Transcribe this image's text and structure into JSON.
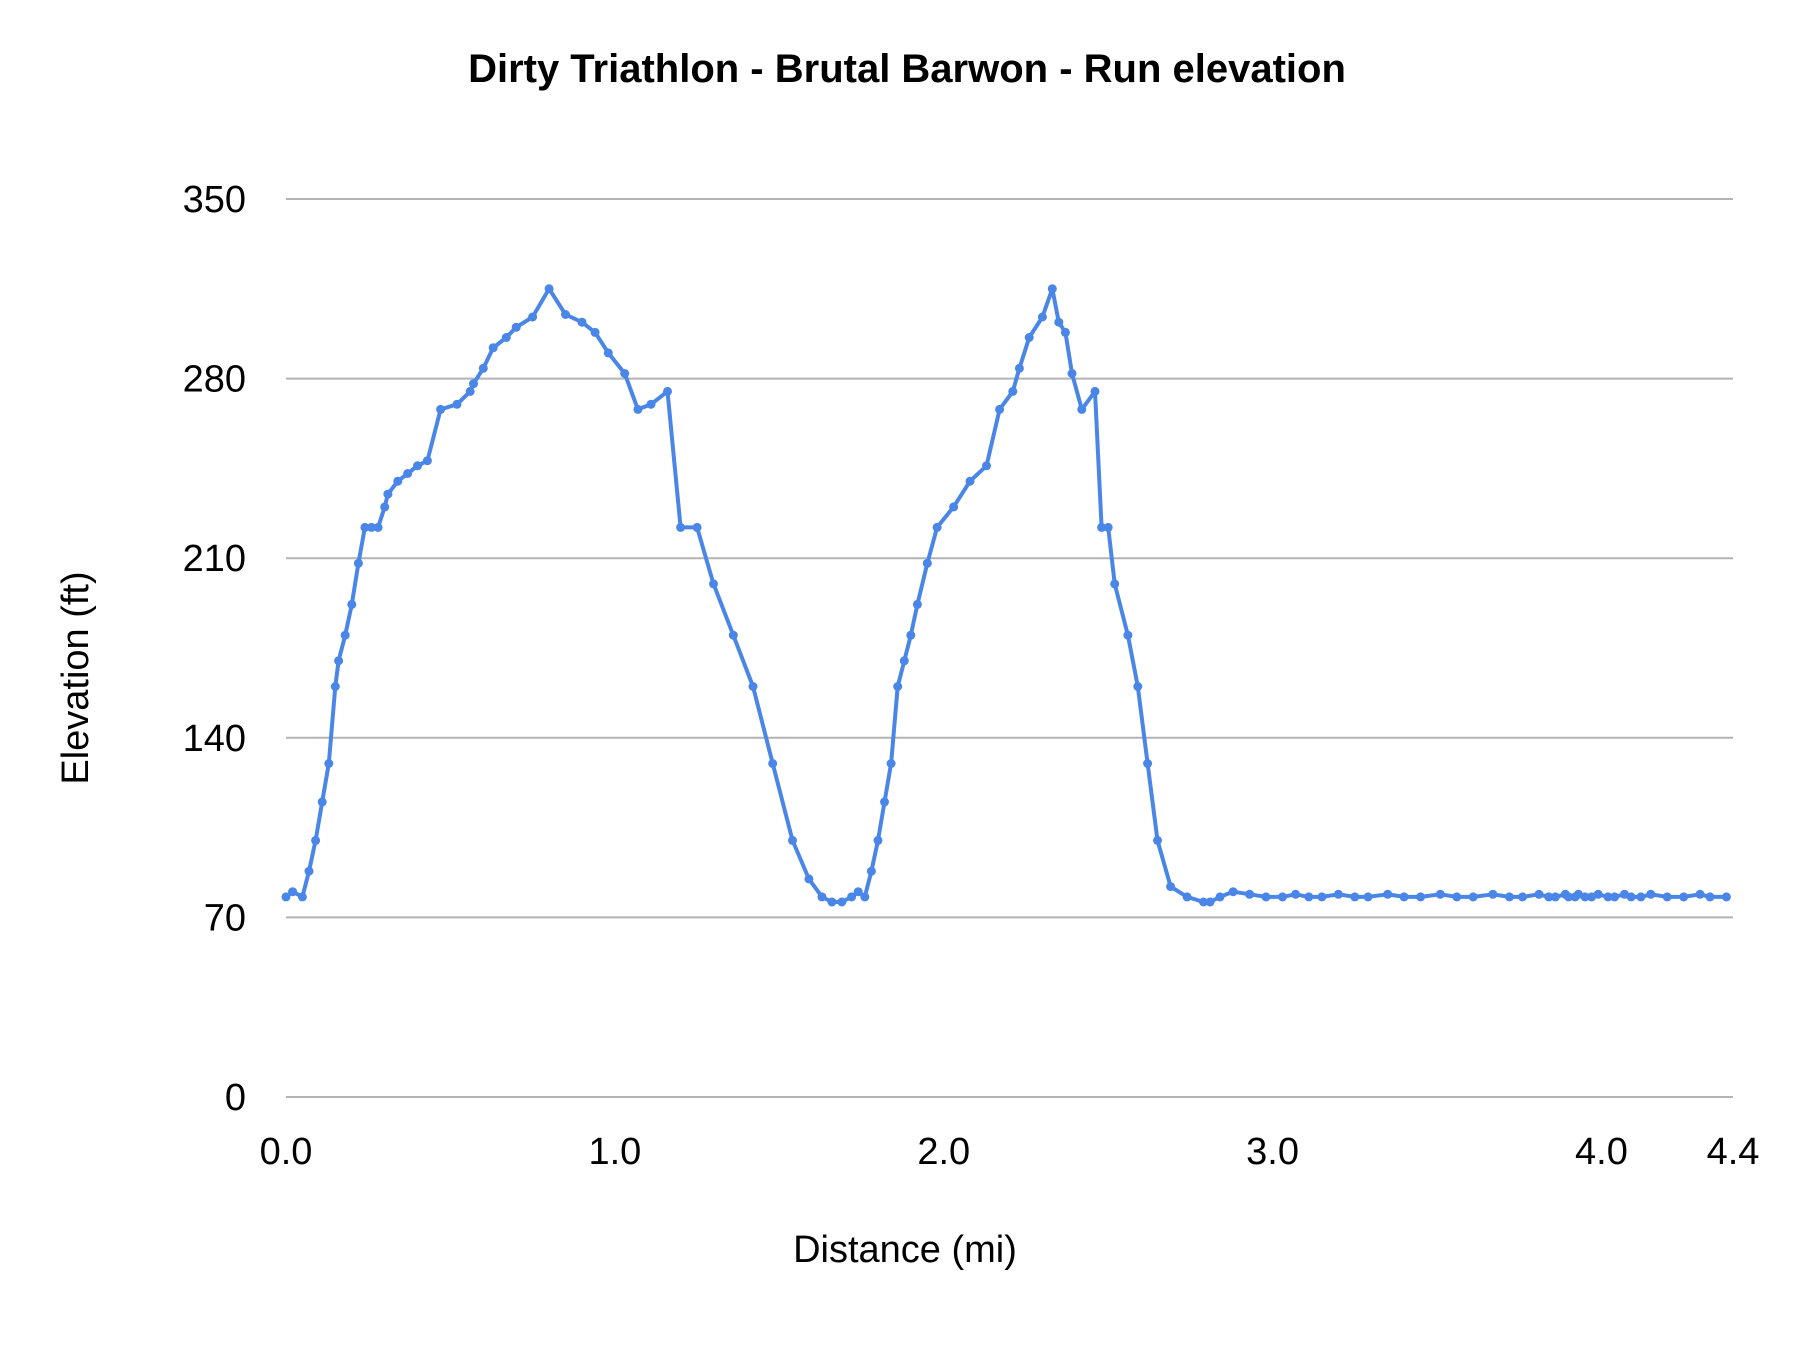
{
  "chart_data": {
    "type": "line",
    "title": "Dirty Triathlon - Brutal Barwon  - Run  elevation",
    "xlabel": "Distance (mi)",
    "ylabel": "Elevation (ft)",
    "ylim": [
      0,
      350
    ],
    "y_ticks": [
      "0",
      "70",
      "140",
      "210",
      "280",
      "350"
    ],
    "x_ticks": [
      {
        "value": 0.0,
        "label": "0.0"
      },
      {
        "value": 1.0,
        "label": "1.0"
      },
      {
        "value": 2.0,
        "label": "2.0"
      },
      {
        "value": 3.0,
        "label": "3.0"
      },
      {
        "value": 4.0,
        "label": "4.0"
      },
      {
        "value": 4.4,
        "label": "4.4"
      }
    ],
    "grid": true,
    "legend": "none",
    "series_color": "#4a86e8",
    "series": [
      {
        "x": [
          0.0,
          0.02,
          0.05,
          0.07,
          0.09,
          0.11,
          0.13,
          0.15,
          0.16,
          0.18,
          0.2,
          0.22,
          0.24,
          0.26,
          0.28,
          0.3,
          0.31,
          0.34,
          0.37,
          0.4,
          0.43,
          0.47,
          0.52,
          0.56,
          0.57,
          0.6,
          0.63,
          0.67,
          0.7,
          0.75,
          0.8,
          0.85,
          0.9,
          0.94,
          0.98,
          1.03,
          1.07,
          1.11,
          1.16,
          1.2,
          1.25,
          1.3,
          1.36,
          1.42,
          1.48,
          1.54,
          1.59,
          1.63,
          1.66,
          1.69,
          1.72,
          1.74,
          1.76,
          1.78,
          1.8,
          1.82,
          1.84,
          1.86,
          1.88,
          1.9,
          1.92,
          1.95,
          1.98,
          2.03,
          2.08,
          2.13,
          2.17,
          2.21,
          2.23,
          2.26,
          2.3,
          2.33,
          2.35,
          2.37,
          2.39,
          2.42,
          2.46,
          2.48,
          2.5,
          2.52,
          2.56,
          2.59,
          2.62,
          2.65,
          2.69,
          2.74,
          2.79,
          2.81,
          2.84,
          2.88,
          2.93,
          2.98,
          3.03,
          3.07,
          3.11,
          3.15,
          3.2,
          3.25,
          3.29,
          3.35,
          3.4,
          3.45,
          3.51,
          3.56,
          3.61,
          3.67,
          3.72,
          3.76,
          3.81,
          3.84,
          3.86,
          3.89,
          3.9,
          3.92,
          3.93,
          3.95,
          3.97,
          3.99,
          4.02,
          4.04,
          4.07,
          4.09,
          4.12,
          4.15,
          4.2,
          4.25,
          4.3,
          4.33,
          4.38
        ],
        "y": [
          78,
          80,
          78,
          88,
          100,
          115,
          130,
          160,
          170,
          180,
          192,
          208,
          222,
          222,
          222,
          230,
          235,
          240,
          243,
          246,
          248,
          268,
          270,
          275,
          278,
          284,
          292,
          296,
          300,
          304,
          315,
          305,
          302,
          298,
          290,
          282,
          268,
          270,
          275,
          222,
          222,
          200,
          180,
          160,
          130,
          100,
          85,
          78,
          76,
          76,
          78,
          80,
          78,
          88,
          100,
          115,
          130,
          160,
          170,
          180,
          192,
          208,
          222,
          230,
          240,
          246,
          268,
          275,
          284,
          296,
          304,
          315,
          302,
          298,
          282,
          268,
          275,
          222,
          222,
          200,
          180,
          160,
          130,
          100,
          82,
          78,
          76,
          76,
          78,
          80,
          79,
          78,
          78,
          79,
          78,
          78,
          79,
          78,
          78,
          79,
          78,
          78,
          79,
          78,
          78,
          79,
          78,
          78,
          79,
          78,
          78,
          79,
          78,
          78,
          79,
          78,
          78,
          79,
          78,
          78,
          79,
          78,
          78,
          79,
          78,
          78,
          79,
          78,
          78
        ]
      }
    ]
  }
}
